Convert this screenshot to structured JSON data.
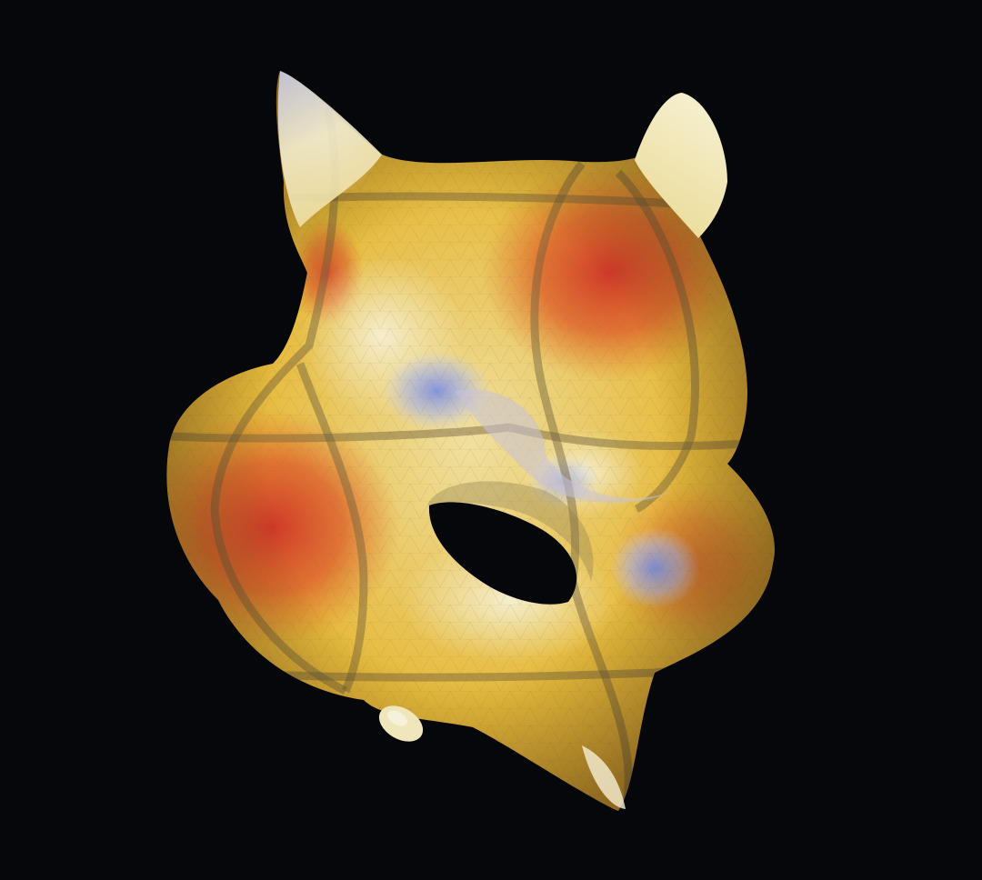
{
  "scene": {
    "subject": "colored-3d-surface-render",
    "colors": {
      "background": "#05070a",
      "red": "#cf3227",
      "orange": "#e0752a",
      "yellow": "#e9c23c",
      "pale": "#f3ecc2",
      "blue": "#8f9fe0",
      "gridline": "#6e5f3b"
    }
  }
}
